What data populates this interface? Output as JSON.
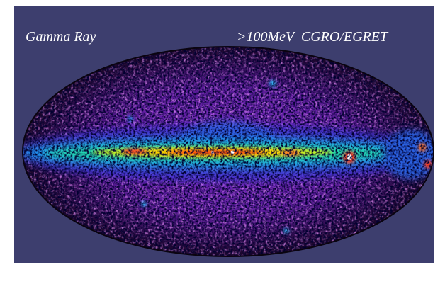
{
  "labels": {
    "left": "Gamma Ray",
    "right": ">100MeV  CGRO/EGRET"
  }
}
